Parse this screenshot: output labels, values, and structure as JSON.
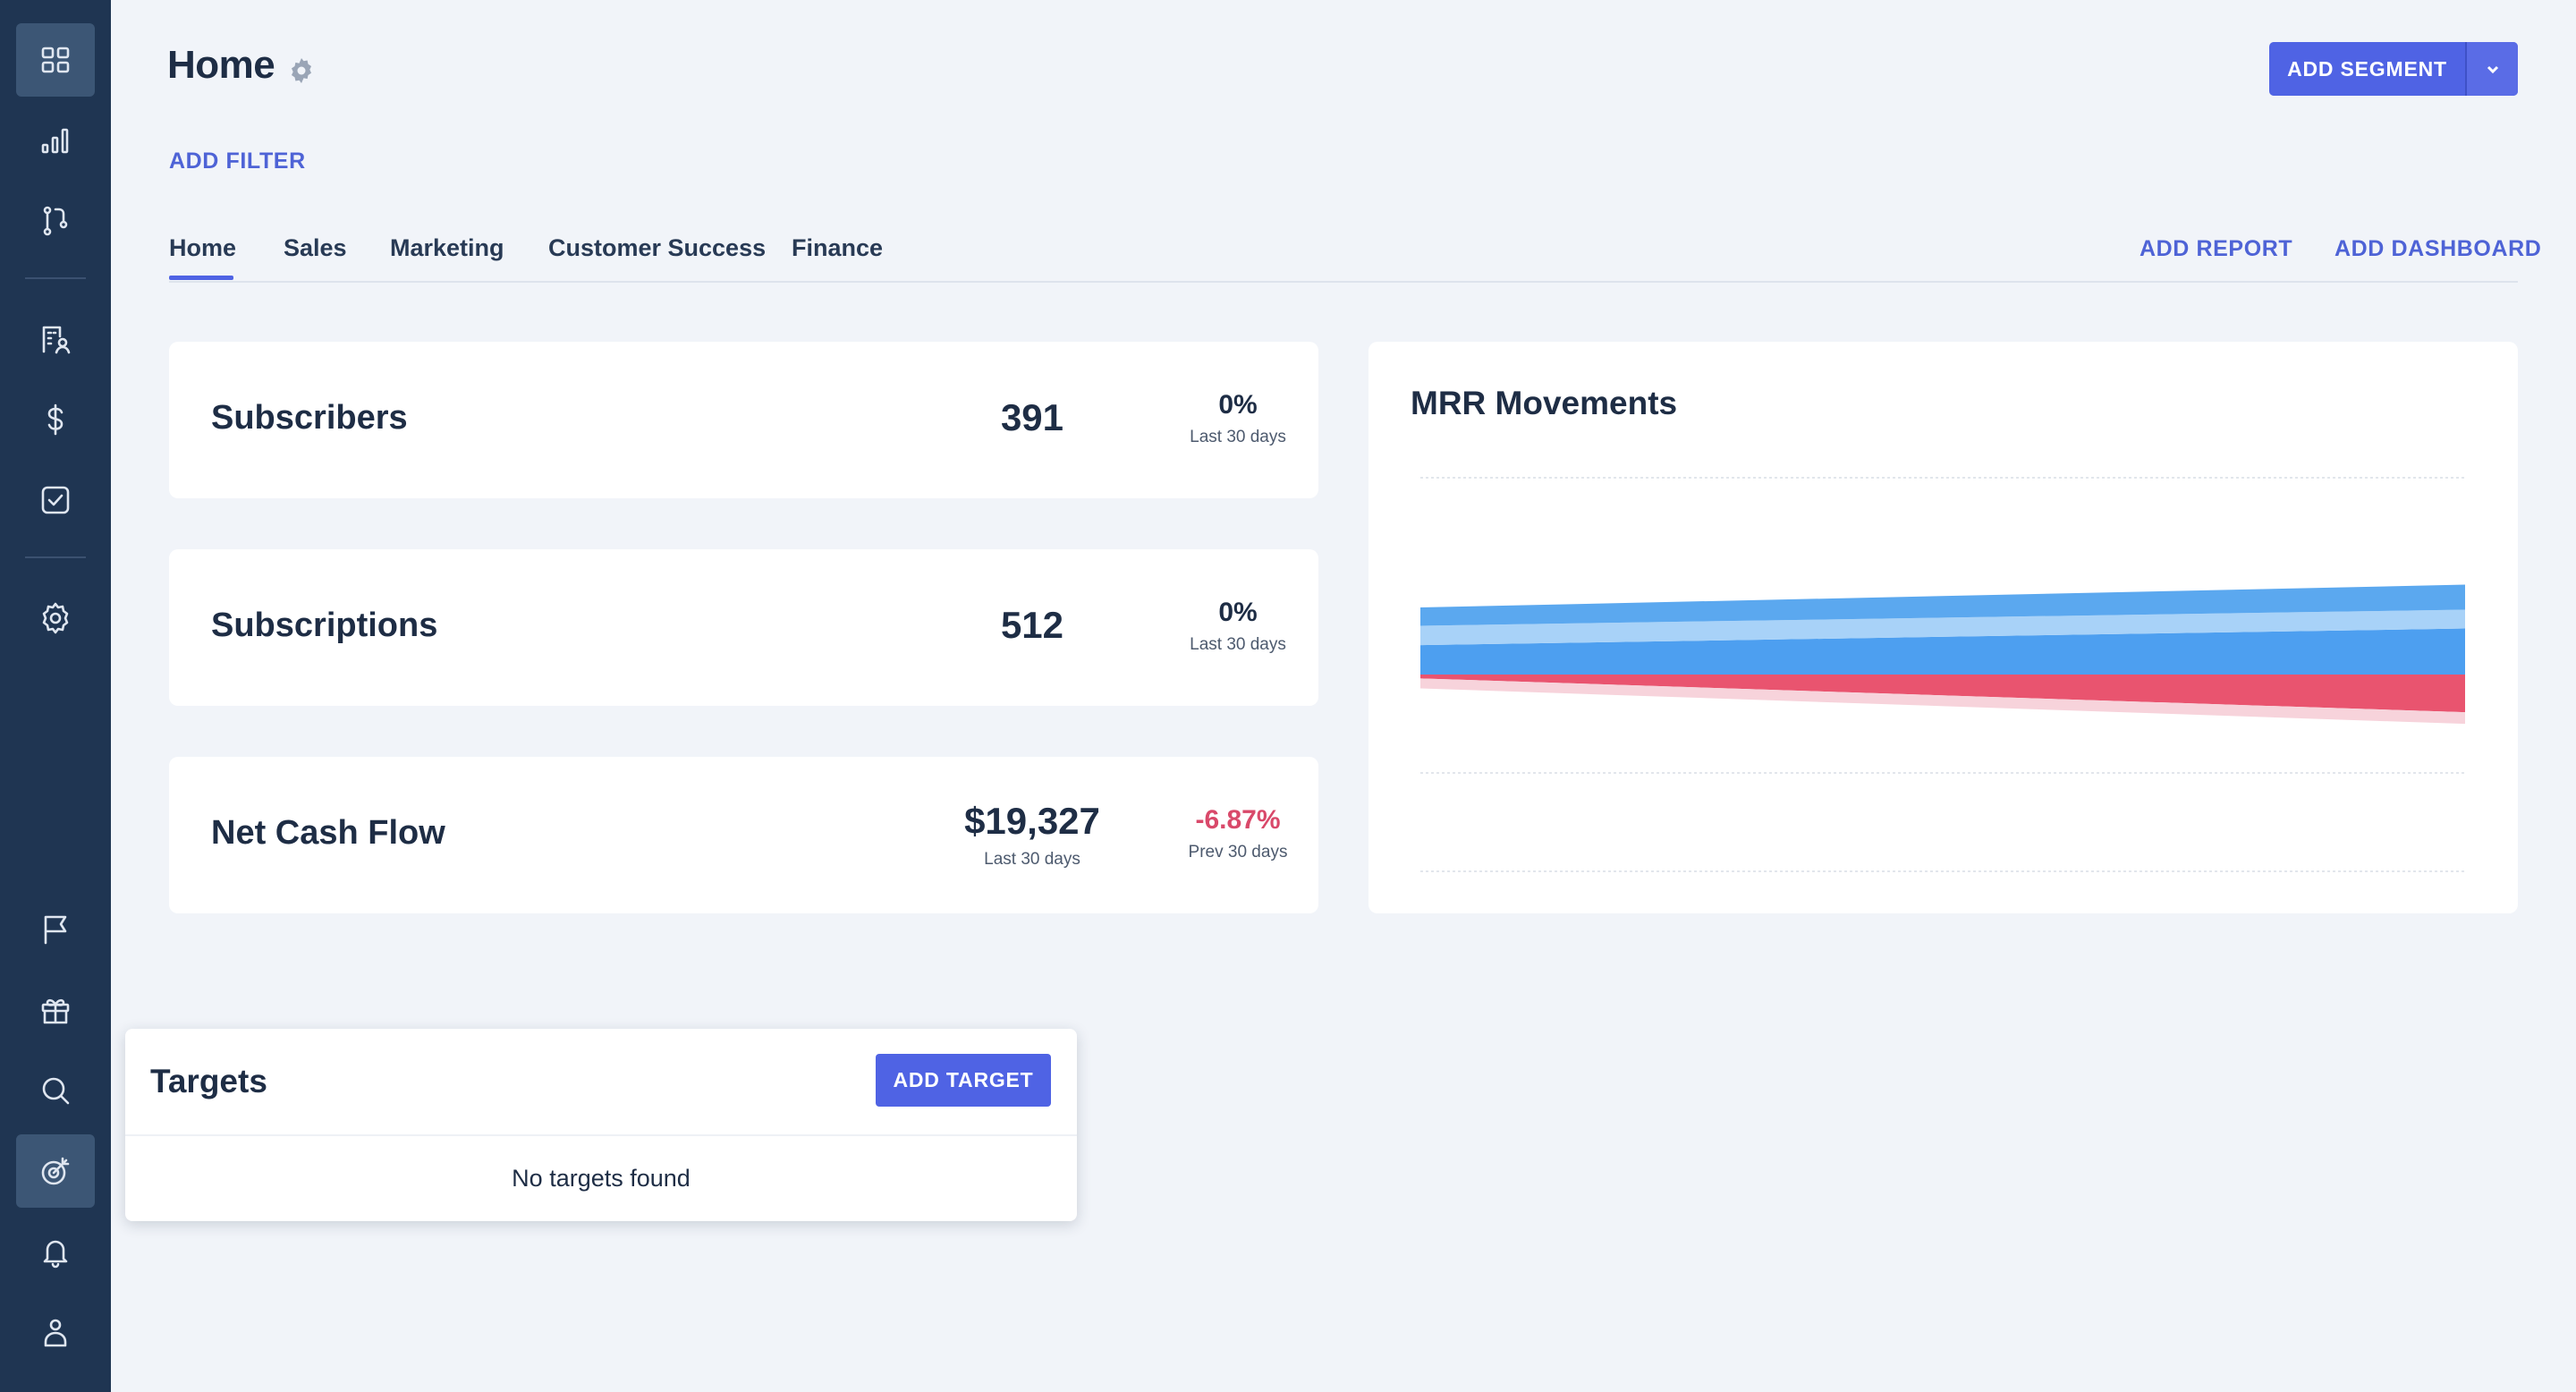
{
  "sidebar": {
    "items": [
      {
        "icon": "dashboard-grid-icon",
        "active": true
      },
      {
        "icon": "bar-chart-icon",
        "active": false
      },
      {
        "icon": "flow-icon",
        "active": false
      },
      {
        "icon": "building-user-icon",
        "active": false
      },
      {
        "icon": "dollar-icon",
        "active": false
      },
      {
        "icon": "checkbox-icon",
        "active": false
      },
      {
        "icon": "settings-icon",
        "active": false
      },
      {
        "icon": "flag-icon",
        "active": false
      },
      {
        "icon": "gift-icon",
        "active": false
      },
      {
        "icon": "search-icon",
        "active": false
      },
      {
        "icon": "target-icon",
        "active": true
      },
      {
        "icon": "bell-icon",
        "active": false
      },
      {
        "icon": "user-icon",
        "active": false
      }
    ]
  },
  "header": {
    "title": "Home",
    "add_segment_label": "ADD SEGMENT",
    "add_filter_label": "ADD FILTER"
  },
  "tabs": [
    {
      "label": "Home",
      "active": true
    },
    {
      "label": "Sales",
      "active": false
    },
    {
      "label": "Marketing",
      "active": false
    },
    {
      "label": "Customer Success",
      "active": false
    },
    {
      "label": "Finance",
      "active": false
    }
  ],
  "actions": {
    "add_report": "ADD REPORT",
    "add_dashboard": "ADD DASHBOARD"
  },
  "metrics": [
    {
      "label": "Subscribers",
      "value": "391",
      "change": "0%",
      "change_period": "Last 30 days"
    },
    {
      "label": "Subscriptions",
      "value": "512",
      "change": "0%",
      "change_period": "Last 30 days"
    },
    {
      "label": "Net Cash Flow",
      "value": "$19,327",
      "value_period": "Last 30 days",
      "change": "-6.87%",
      "change_period": "Prev 30 days"
    }
  ],
  "mrr_chart": {
    "title": "MRR Movements"
  },
  "chart_data": {
    "type": "area",
    "title": "MRR Movements",
    "xlabel": "",
    "ylabel": "",
    "x": [
      0,
      1
    ],
    "grid": true,
    "series": [
      {
        "color": "#5ba8ef",
        "values": [
          0.33,
          0.45
        ]
      },
      {
        "color": "#a8d2f8",
        "values": [
          0.35,
          0.34
        ]
      },
      {
        "color": "#4d9ff0",
        "values": [
          0.53,
          0.83
        ]
      },
      {
        "color": "#e9546f",
        "values": [
          -0.07,
          -0.68
        ]
      },
      {
        "color": "#f7d3db",
        "values": [
          -0.18,
          -0.21
        ]
      }
    ],
    "colors": {
      "positive": "#4d9ff0",
      "negative": "#e9546f"
    }
  },
  "targets": {
    "title": "Targets",
    "add_label": "ADD TARGET",
    "empty_text": "No targets found"
  },
  "colors": {
    "sidebar_bg": "#1f3552",
    "accent": "#4f63e4",
    "negative": "#d9496a",
    "page_bg": "#f1f4f9"
  }
}
